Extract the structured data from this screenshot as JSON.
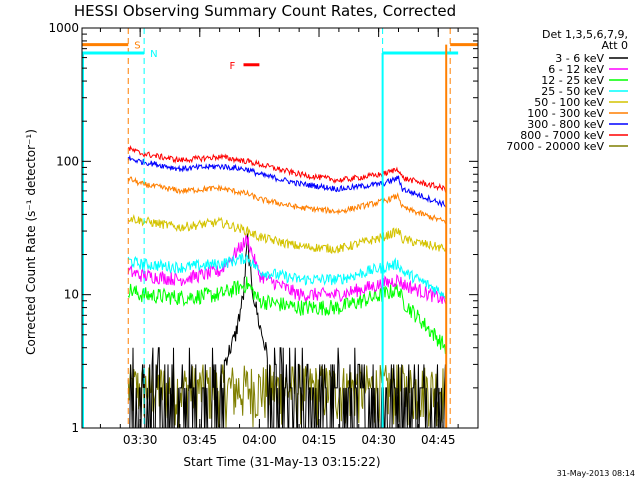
{
  "chart_data": {
    "type": "line",
    "title": "HESSI Observing Summary Count Rates, Corrected",
    "xlabel": "Start Time (31-May-13 03:15:22)",
    "ylabel": "Corrected Count Rate (s⁻¹ detector⁻¹)",
    "y_scale": "log",
    "ylim": [
      1,
      1000
    ],
    "xlim": [
      "03:15:22",
      "04:55:00"
    ],
    "x_ticks": [
      "03:30",
      "03:45",
      "04:00",
      "04:15",
      "04:30",
      "04:45"
    ],
    "y_ticks": [
      "1",
      "10",
      "100",
      "1000"
    ],
    "grid": false,
    "legend": {
      "placement": "right",
      "header": [
        "Det 1,3,5,6,7,9,",
        "Att 0"
      ],
      "entries": [
        {
          "label": "3 - 6 keV",
          "color": "#000000"
        },
        {
          "label": "6 - 12 keV",
          "color": "#ff00ff"
        },
        {
          "label": "12 - 25 keV",
          "color": "#00ff00"
        },
        {
          "label": "25 - 50 keV",
          "color": "#00ffff"
        },
        {
          "label": "50 - 100 keV",
          "color": "#d4c300"
        },
        {
          "label": "100 - 300 keV",
          "color": "#ff7f00"
        },
        {
          "label": "300 - 800 keV",
          "color": "#0000ff"
        },
        {
          "label": "800 - 7000 keV",
          "color": "#ff0000"
        },
        {
          "label": "7000 - 20000 keV",
          "color": "#7f7f00"
        }
      ]
    },
    "x_knots": [
      "03:27",
      "03:30",
      "03:40",
      "03:50",
      "03:57",
      "04:00",
      "04:10",
      "04:20",
      "04:31",
      "04:35",
      "04:36",
      "04:47"
    ],
    "series": [
      {
        "name": "800 - 7000 keV",
        "color": "#ff0000",
        "jitter": 0.05,
        "values": [
          125,
          115,
          102,
          108,
          100,
          95,
          80,
          72,
          80,
          88,
          75,
          62
        ]
      },
      {
        "name": "300 - 800 keV",
        "color": "#0000ff",
        "jitter": 0.05,
        "values": [
          105,
          100,
          88,
          92,
          87,
          80,
          68,
          62,
          68,
          75,
          62,
          47
        ]
      },
      {
        "name": "100 - 300 keV",
        "color": "#ff7f00",
        "jitter": 0.05,
        "values": [
          75,
          68,
          60,
          63,
          57,
          52,
          45,
          42,
          50,
          55,
          45,
          35
        ]
      },
      {
        "name": "50 - 100 keV",
        "color": "#d4c300",
        "jitter": 0.08,
        "values": [
          38,
          36,
          32,
          35,
          30,
          27,
          23,
          22,
          27,
          30,
          26,
          22
        ]
      },
      {
        "name": "25 - 50 keV",
        "color": "#00ffff",
        "jitter": 0.1,
        "values": [
          18,
          17,
          16,
          17,
          19,
          15,
          13,
          13,
          16,
          17,
          15,
          10
        ]
      },
      {
        "name": "6 - 12 keV",
        "color": "#ff00ff",
        "jitter": 0.12,
        "values": [
          15,
          14,
          13,
          15,
          26,
          14,
          10,
          10,
          12,
          13,
          12,
          9
        ]
      },
      {
        "name": "12 - 25 keV",
        "color": "#00ff00",
        "jitter": 0.14,
        "values": [
          11,
          10,
          9.5,
          10,
          12,
          9,
          8,
          8,
          10,
          11,
          9,
          4
        ]
      }
    ],
    "low_band": {
      "name": "3 - 6 keV",
      "color": "#000000",
      "flare_knots": [
        "03:51",
        "03:54",
        "03:56",
        "03:57",
        "03:58",
        "04:00",
        "04:02"
      ],
      "flare_values": [
        3,
        5,
        10,
        26,
        12,
        6,
        3.5
      ]
    },
    "noise_band": {
      "name": "7000 - 20000 keV",
      "color": "#7f7f00",
      "range": [
        1,
        3
      ]
    },
    "markers": [
      {
        "label": "S",
        "color": "#ff7f00",
        "level": 750,
        "bars": [
          [
            "03:15:22",
            "03:27"
          ],
          [
            "04:48",
            "04:55"
          ]
        ],
        "lines": [
          "03:27",
          "04:48"
        ]
      },
      {
        "label": "N",
        "color": "#00ffff",
        "level": 650,
        "bars": [
          [
            "03:15:22",
            "03:31"
          ],
          [
            "04:31",
            "04:50"
          ]
        ],
        "lines": [
          "03:31",
          "04:31"
        ]
      },
      {
        "label": "F",
        "color": "#ff0000",
        "level": 530,
        "bars": [
          [
            "03:56",
            "04:00"
          ]
        ],
        "lines": []
      }
    ],
    "timestamp": "31-May-2013 08:14"
  }
}
